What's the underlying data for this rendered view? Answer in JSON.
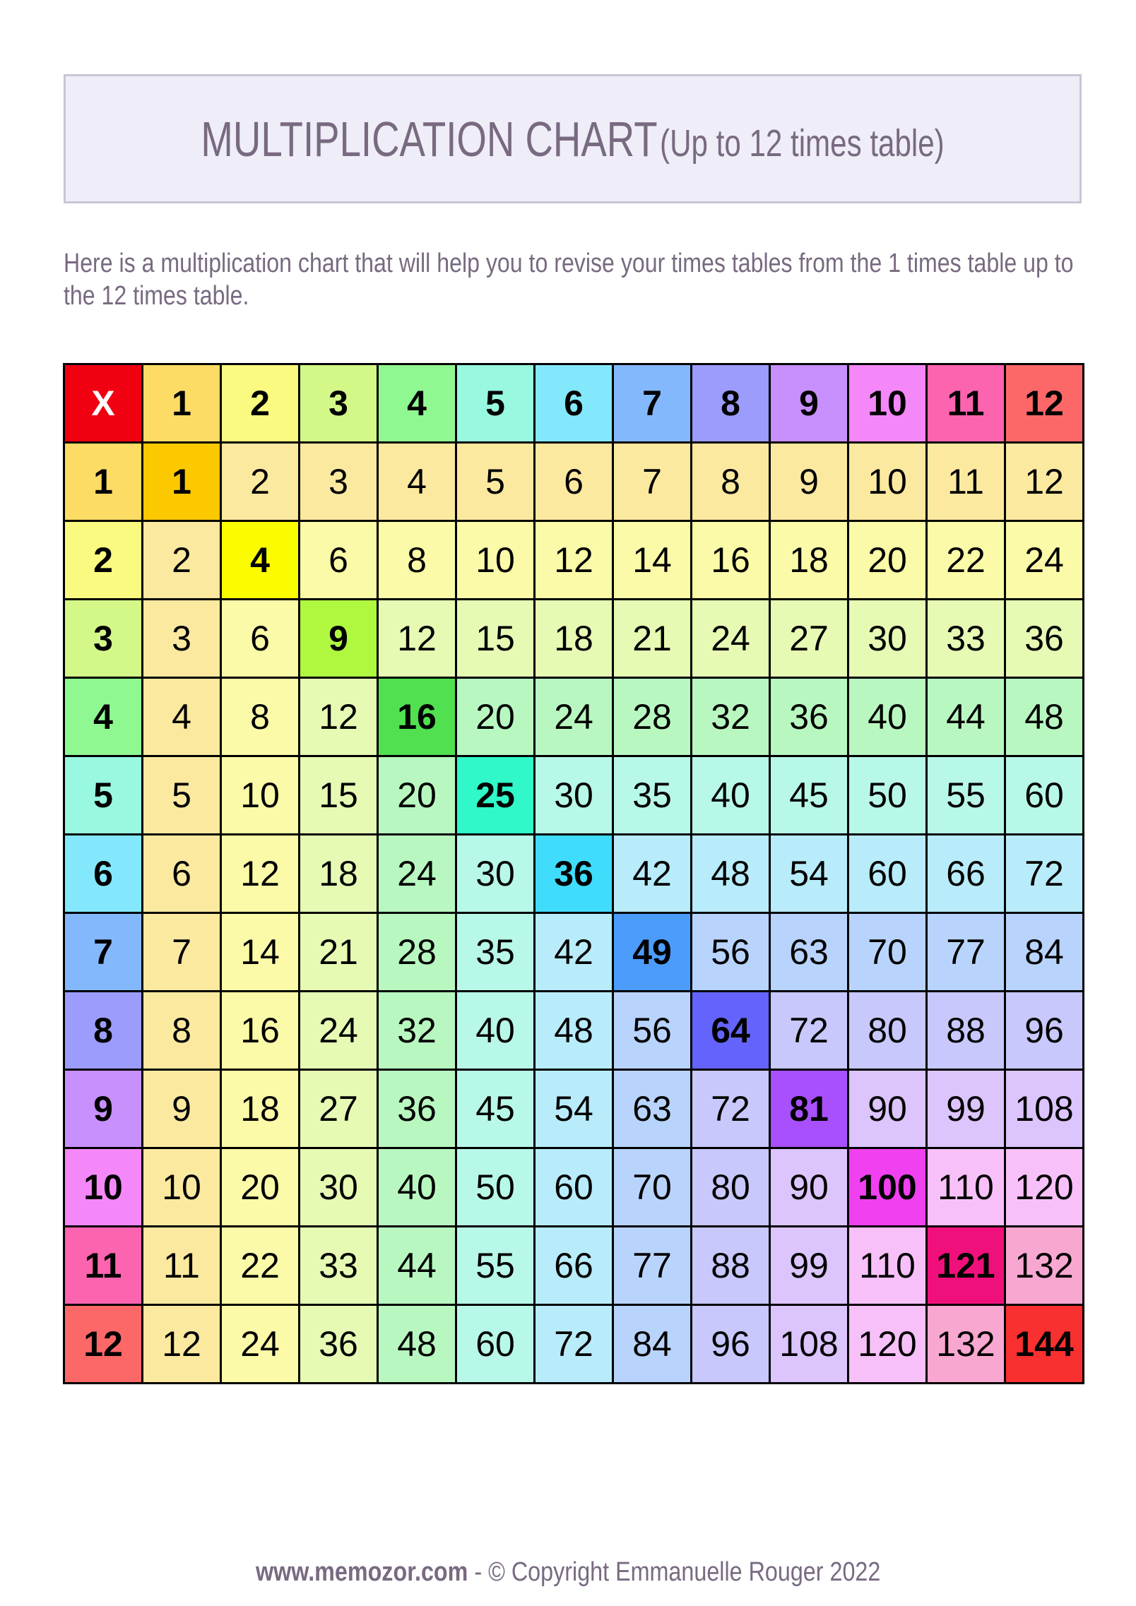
{
  "header": {
    "title_main": "MULTIPLICATION CHART",
    "title_sub": "(Up to 12 times table)"
  },
  "description": "Here is a multiplication chart that will help you to revise your times tables from the 1 times table up to the 12 times table.",
  "footer": {
    "site": "www.memozor.com",
    "separator": " - ",
    "copyright": "© Copyright Emmanuelle Rouger 2022"
  },
  "colors": {
    "corner": "#f00010",
    "header": [
      "#fcdc64",
      "#fafa80",
      "#d4f888",
      "#90f890",
      "#98f8e0",
      "#84e8fc",
      "#84b8fc",
      "#9c9cfc",
      "#c890fc",
      "#f488f8",
      "#fc64b0",
      "#fc6868"
    ],
    "light": [
      "#fce9a0",
      "#fafaa8",
      "#e6fab4",
      "#b8f8c0",
      "#b8f8e8",
      "#b8ecfa",
      "#b8d4fc",
      "#c8c8fc",
      "#dcc4fc",
      "#f8c0f8",
      "#f8a8d0",
      "#f8a8a8"
    ],
    "diagonal": [
      "#fcc800",
      "#fcfc00",
      "#b0f840",
      "#50e050",
      "#30f8c8",
      "#40dcfc",
      "#4c9cfc",
      "#6464fc",
      "#a850fc",
      "#f040f0",
      "#f0107c",
      "#f83030"
    ]
  },
  "chart_data": {
    "type": "table",
    "corner": "X",
    "column_headers": [
      "1",
      "2",
      "3",
      "4",
      "5",
      "6",
      "7",
      "8",
      "9",
      "10",
      "11",
      "12"
    ],
    "row_headers": [
      "1",
      "2",
      "3",
      "4",
      "5",
      "6",
      "7",
      "8",
      "9",
      "10",
      "11",
      "12"
    ],
    "rows": [
      [
        1,
        2,
        3,
        4,
        5,
        6,
        7,
        8,
        9,
        10,
        11,
        12
      ],
      [
        2,
        4,
        6,
        8,
        10,
        12,
        14,
        16,
        18,
        20,
        22,
        24
      ],
      [
        3,
        6,
        9,
        12,
        15,
        18,
        21,
        24,
        27,
        30,
        33,
        36
      ],
      [
        4,
        8,
        12,
        16,
        20,
        24,
        28,
        32,
        36,
        40,
        44,
        48
      ],
      [
        5,
        10,
        15,
        20,
        25,
        30,
        35,
        40,
        45,
        50,
        55,
        60
      ],
      [
        6,
        12,
        18,
        24,
        30,
        36,
        42,
        48,
        54,
        60,
        66,
        72
      ],
      [
        7,
        14,
        21,
        28,
        35,
        42,
        49,
        56,
        63,
        70,
        77,
        84
      ],
      [
        8,
        16,
        24,
        32,
        40,
        48,
        56,
        64,
        72,
        80,
        88,
        96
      ],
      [
        9,
        18,
        27,
        36,
        45,
        54,
        63,
        72,
        81,
        90,
        99,
        108
      ],
      [
        10,
        20,
        30,
        40,
        50,
        60,
        70,
        80,
        90,
        100,
        110,
        120
      ],
      [
        11,
        22,
        33,
        44,
        55,
        66,
        77,
        88,
        99,
        110,
        121,
        132
      ],
      [
        12,
        24,
        36,
        48,
        60,
        72,
        84,
        96,
        108,
        120,
        132,
        144
      ]
    ]
  }
}
